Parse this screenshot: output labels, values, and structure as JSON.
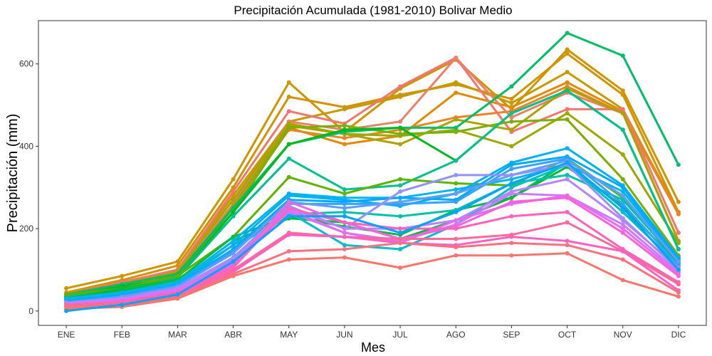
{
  "chart_data": {
    "type": "line",
    "title": "Precipitación Acumulada (1981-2010)  Bolivar Medio",
    "xlabel": "Mes",
    "ylabel": "Precipitación  (mm)",
    "categories": [
      "ENE",
      "FEB",
      "MAR",
      "ABR",
      "MAY",
      "JUN",
      "JUL",
      "AGO",
      "SEP",
      "OCT",
      "NOV",
      "DIC"
    ],
    "ylim": [
      -35,
      705
    ],
    "yticks": [
      0,
      200,
      400,
      600
    ],
    "grid": false,
    "legend": "none",
    "series": [
      {
        "color": "#CD9600",
        "values": [
          55,
          85,
          120,
          320,
          555,
          435,
          540,
          610,
          490,
          635,
          535,
          265
        ]
      },
      {
        "color": "#D39200",
        "values": [
          45,
          75,
          110,
          300,
          520,
          495,
          525,
          550,
          515,
          625,
          525,
          240
        ]
      },
      {
        "color": "#C49A00",
        "values": [
          40,
          70,
          100,
          280,
          460,
          490,
          520,
          555,
          505,
          580,
          490,
          235
        ]
      },
      {
        "color": "#E38900",
        "values": [
          35,
          65,
          95,
          270,
          445,
          405,
          425,
          530,
          495,
          555,
          485,
          240
        ]
      },
      {
        "color": "#E88526",
        "values": [
          30,
          60,
          90,
          250,
          440,
          420,
          440,
          470,
          485,
          545,
          480,
          235
        ]
      },
      {
        "color": "#F2766E",
        "values": [
          40,
          70,
          100,
          290,
          485,
          455,
          545,
          615,
          435,
          490,
          490,
          190
        ]
      },
      {
        "color": "#EE7D6B",
        "values": [
          35,
          65,
          90,
          260,
          460,
          440,
          460,
          615,
          470,
          530,
          480,
          170
        ]
      },
      {
        "color": "#AEA200",
        "values": [
          40,
          65,
          95,
          270,
          455,
          430,
          405,
          465,
          440,
          540,
          480,
          170
        ]
      },
      {
        "color": "#9AA800",
        "values": [
          35,
          60,
          85,
          255,
          450,
          430,
          425,
          440,
          400,
          480,
          380,
          165
        ]
      },
      {
        "color": "#7CAE00",
        "values": [
          40,
          60,
          90,
          240,
          445,
          450,
          430,
          435,
          460,
          465,
          320,
          135
        ]
      },
      {
        "color": "#00BE67",
        "values": [
          40,
          65,
          90,
          250,
          405,
          435,
          445,
          445,
          545,
          675,
          620,
          355
        ]
      },
      {
        "color": "#00B81F",
        "values": [
          35,
          60,
          80,
          240,
          405,
          440,
          445,
          365,
          480,
          535,
          440,
          150
        ]
      },
      {
        "color": "#00C08B",
        "values": [
          35,
          55,
          80,
          230,
          370,
          295,
          305,
          365,
          480,
          535,
          440,
          150
        ]
      },
      {
        "color": "#5EB300",
        "values": [
          40,
          55,
          85,
          180,
          325,
          285,
          320,
          310,
          305,
          370,
          275,
          130
        ]
      },
      {
        "color": "#00BB4E",
        "values": [
          30,
          55,
          75,
          180,
          230,
          205,
          185,
          245,
          275,
          360,
          250,
          120
        ]
      },
      {
        "color": "#00BA38",
        "values": [
          30,
          50,
          70,
          170,
          225,
          215,
          175,
          220,
          275,
          350,
          255,
          115
        ]
      },
      {
        "color": "#00C1AA",
        "values": [
          25,
          45,
          70,
          160,
          235,
          240,
          230,
          245,
          310,
          330,
          270,
          120
        ]
      },
      {
        "color": "#00BFC4",
        "values": [
          20,
          40,
          65,
          150,
          240,
          160,
          150,
          210,
          300,
          355,
          240,
          110
        ]
      },
      {
        "color": "#00B4EF",
        "values": [
          30,
          45,
          70,
          170,
          285,
          275,
          275,
          295,
          320,
          355,
          290,
          125
        ]
      },
      {
        "color": "#00B0F6",
        "values": [
          25,
          40,
          65,
          160,
          280,
          270,
          255,
          285,
          360,
          395,
          305,
          130
        ]
      },
      {
        "color": "#00A9FF",
        "values": [
          20,
          40,
          60,
          150,
          270,
          265,
          275,
          270,
          355,
          375,
          300,
          125
        ]
      },
      {
        "color": "#35A2FF",
        "values": [
          15,
          35,
          60,
          145,
          260,
          260,
          260,
          265,
          345,
          370,
          260,
          110
        ]
      },
      {
        "color": "#619CFF",
        "values": [
          20,
          35,
          60,
          140,
          265,
          250,
          265,
          285,
          330,
          365,
          280,
          120
        ]
      },
      {
        "color": "#9590FF",
        "values": [
          15,
          30,
          55,
          130,
          255,
          200,
          290,
          330,
          330,
          355,
          225,
          100
        ]
      },
      {
        "color": "#B983FF",
        "values": [
          15,
          30,
          55,
          125,
          250,
          200,
          200,
          220,
          290,
          320,
          220,
          105
        ]
      },
      {
        "color": "#C77CFF",
        "values": [
          20,
          30,
          50,
          120,
          240,
          190,
          170,
          210,
          285,
          280,
          210,
          95
        ]
      },
      {
        "color": "#E76BF3",
        "values": [
          15,
          25,
          50,
          115,
          245,
          190,
          165,
          220,
          260,
          280,
          200,
          90
        ]
      },
      {
        "color": "#FA62DB",
        "values": [
          10,
          25,
          45,
          110,
          265,
          215,
          175,
          205,
          265,
          275,
          190,
          85
        ]
      },
      {
        "color": "#FF62BC",
        "values": [
          10,
          20,
          45,
          105,
          250,
          215,
          200,
          200,
          230,
          240,
          150,
          70
        ]
      },
      {
        "color": "#FF6A98",
        "values": [
          15,
          20,
          40,
          100,
          190,
          180,
          175,
          175,
          185,
          215,
          145,
          65
        ]
      },
      {
        "color": "#FF61C3",
        "values": [
          10,
          15,
          40,
          95,
          185,
          180,
          165,
          160,
          180,
          170,
          145,
          50
        ]
      },
      {
        "color": "#FC717F",
        "values": [
          10,
          15,
          35,
          90,
          145,
          150,
          165,
          155,
          165,
          160,
          125,
          45
        ]
      },
      {
        "color": "#F8766D",
        "values": [
          5,
          10,
          30,
          85,
          125,
          130,
          105,
          135,
          135,
          140,
          75,
          35
        ]
      },
      {
        "color": "#00A5FF",
        "values": [
          0,
          15,
          40,
          120,
          230,
          230,
          190,
          240,
          310,
          360,
          250,
          100
        ]
      }
    ]
  }
}
